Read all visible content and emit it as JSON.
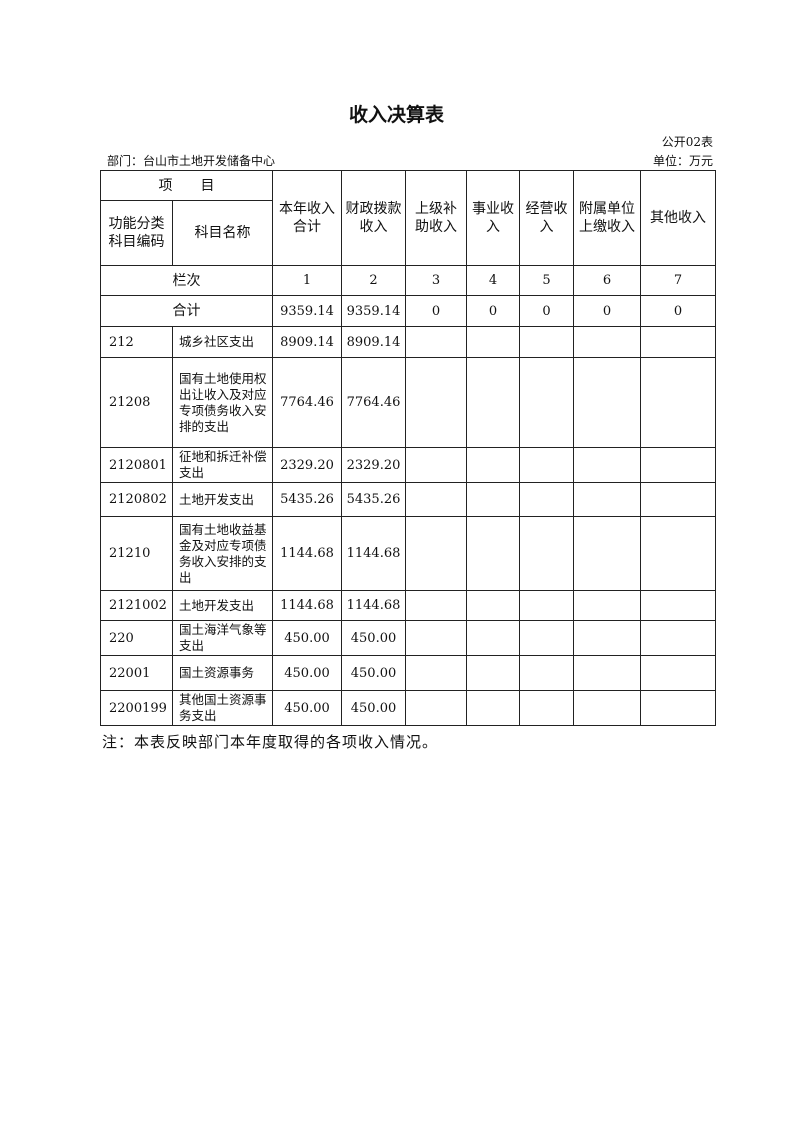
{
  "title": "收入决算表",
  "table_no": "公开02表",
  "department": "部门：台山市土地开发储备中心",
  "unit": "单位：万元",
  "header": {
    "item": "项　　目",
    "code": "功能分类科目编码",
    "name": "科目名称",
    "columns": [
      "本年收入合计",
      "财政拨款收入",
      "上级补助收入",
      "事业收入",
      "经营收入",
      "附属单位上缴收入",
      "其他收入"
    ]
  },
  "column_index": {
    "label": "栏次",
    "values": [
      "1",
      "2",
      "3",
      "4",
      "5",
      "6",
      "7"
    ]
  },
  "total": {
    "label": "合计",
    "values": [
      "9359.14",
      "9359.14",
      "0",
      "0",
      "0",
      "0",
      "0"
    ]
  },
  "rows": [
    {
      "code": "212",
      "name": "城乡社区支出",
      "values": [
        "8909.14",
        "8909.14",
        "",
        "",
        "",
        "",
        ""
      ]
    },
    {
      "code": "21208",
      "name": "国有土地使用权出让收入及对应专项债务收入安排的支出",
      "values": [
        "7764.46",
        "7764.46",
        "",
        "",
        "",
        "",
        ""
      ]
    },
    {
      "code": "2120801",
      "name": "征地和拆迁补偿支出",
      "values": [
        "2329.20",
        "2329.20",
        "",
        "",
        "",
        "",
        ""
      ]
    },
    {
      "code": "2120802",
      "name": "土地开发支出",
      "values": [
        "5435.26",
        "5435.26",
        "",
        "",
        "",
        "",
        ""
      ]
    },
    {
      "code": "21210",
      "name": "国有土地收益基金及对应专项债务收入安排的支出",
      "values": [
        "1144.68",
        "1144.68",
        "",
        "",
        "",
        "",
        ""
      ]
    },
    {
      "code": "2121002",
      "name": "土地开发支出",
      "values": [
        "1144.68",
        "1144.68",
        "",
        "",
        "",
        "",
        ""
      ]
    },
    {
      "code": "220",
      "name": "国土海洋气象等支出",
      "values": [
        "450.00",
        "450.00",
        "",
        "",
        "",
        "",
        ""
      ]
    },
    {
      "code": "22001",
      "name": "国土资源事务",
      "values": [
        "450.00",
        "450.00",
        "",
        "",
        "",
        "",
        ""
      ]
    },
    {
      "code": "2200199",
      "name": "其他国土资源事务支出",
      "values": [
        "450.00",
        "450.00",
        "",
        "",
        "",
        "",
        ""
      ]
    }
  ],
  "note": "注：本表反映部门本年度取得的各项收入情况。"
}
